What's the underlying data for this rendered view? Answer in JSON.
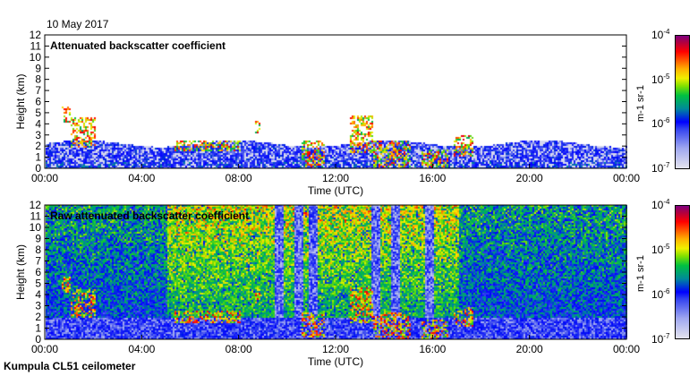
{
  "date": "10 May 2017",
  "footer": "Kumpula CL51 ceilometer",
  "chart_data": [
    {
      "type": "heatmap",
      "title": "Attenuated backscatter coefficient",
      "xlabel": "Time (UTC)",
      "ylabel": "Height (km)",
      "xlim": [
        0,
        24
      ],
      "ylim": [
        0,
        12
      ],
      "xticks": [
        "00:00",
        "04:00",
        "08:00",
        "12:00",
        "16:00",
        "20:00",
        "00:00"
      ],
      "yticks": [
        "0",
        "1",
        "2",
        "3",
        "4",
        "5",
        "6",
        "7",
        "8",
        "9",
        "10",
        "11",
        "12"
      ],
      "colorbar": {
        "label": "m-1 sr-1",
        "range": [
          1e-07,
          0.0001
        ],
        "ticks": [
          "10-7",
          "10-6",
          "10-5",
          "10-4"
        ],
        "scale": "log"
      },
      "boundary_layer_top_km": 2.3,
      "features": [
        {
          "t": [
            0.6,
            1.0
          ],
          "h": [
            4.2,
            5.6
          ]
        },
        {
          "t": [
            1.0,
            2.0
          ],
          "h": [
            2.0,
            4.6
          ]
        },
        {
          "t": [
            5.3,
            8.0
          ],
          "h": [
            1.6,
            2.6
          ]
        },
        {
          "t": [
            8.6,
            8.8
          ],
          "h": [
            3.2,
            4.3
          ]
        },
        {
          "t": [
            10.5,
            11.5
          ],
          "h": [
            0.2,
            2.5
          ]
        },
        {
          "t": [
            12.5,
            13.5
          ],
          "h": [
            1.5,
            4.8
          ]
        },
        {
          "t": [
            13.5,
            15.0
          ],
          "h": [
            0.1,
            2.5
          ]
        },
        {
          "t": [
            15.5,
            16.6
          ],
          "h": [
            0.1,
            1.8
          ]
        },
        {
          "t": [
            16.8,
            17.6
          ],
          "h": [
            1.2,
            3.0
          ]
        }
      ]
    },
    {
      "type": "heatmap",
      "title": "Raw attenuated backscatter coefficient",
      "xlabel": "Time (UTC)",
      "ylabel": "Height (km)",
      "xlim": [
        0,
        24
      ],
      "ylim": [
        0,
        12
      ],
      "xticks": [
        "00:00",
        "04:00",
        "08:00",
        "12:00",
        "16:00",
        "20:00",
        "00:00"
      ],
      "yticks": [
        "0",
        "1",
        "2",
        "3",
        "4",
        "5",
        "6",
        "7",
        "8",
        "9",
        "10",
        "11",
        "12"
      ],
      "colorbar": {
        "label": "m-1 sr-1",
        "range": [
          1e-07,
          0.0001
        ],
        "ticks": [
          "10-7",
          "10-6",
          "10-5",
          "10-4"
        ],
        "scale": "log"
      },
      "noisy_period": [
        5.0,
        17.0
      ],
      "clear_stripes": [
        9.6,
        10.4,
        11.0,
        13.6,
        14.4,
        15.8
      ]
    }
  ]
}
